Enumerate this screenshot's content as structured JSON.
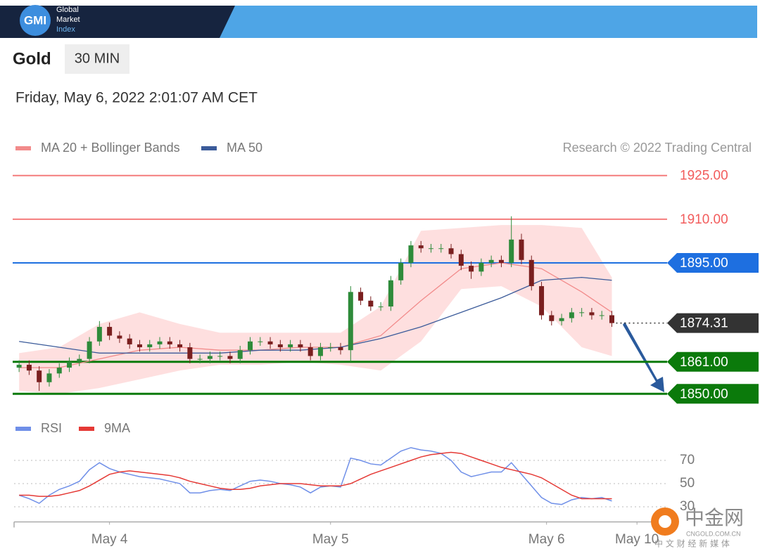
{
  "header": {
    "logo": "GMI",
    "brand": [
      "Global",
      "Market",
      "Index"
    ]
  },
  "symbol": "Gold",
  "timeframe": "30 MIN",
  "timestamp": "Friday, May 6, 2022 2:01:07 AM CET",
  "watermark": {
    "title": "中金网",
    "domain": "CNGOLD.COM.CN",
    "tagline": "中 文 财 经 新 媒 体"
  },
  "chart_data": [
    {
      "type": "candlestick",
      "source": "Research © 2022 Trading Central",
      "xlim": [
        -0.5,
        64.5
      ],
      "ylim": [
        1845,
        1930
      ],
      "up_color": "#2e8b3a",
      "down_color": "#7a1f1f",
      "open": [
        1859,
        1860,
        1858,
        1854,
        1857,
        1859,
        1861,
        1862,
        1868,
        1873,
        1870,
        1869,
        1867,
        1866,
        1867,
        1868,
        1867,
        1866,
        1862,
        1862,
        1863,
        1863,
        1862,
        1865,
        1868,
        1868,
        1867,
        1866,
        1867,
        1866,
        1863,
        1866,
        1866,
        1865,
        1885,
        1882,
        1880,
        1880,
        1889,
        1895,
        1901,
        1900,
        1900,
        1900,
        1898,
        1894,
        1892,
        1895,
        1896,
        1895,
        1903,
        1896,
        1887,
        1877,
        1875,
        1876,
        1878,
        1878,
        1877,
        1877
      ],
      "high": [
        1861.5,
        1861.5,
        1859.5,
        1858.5,
        1860.5,
        1862.5,
        1863.5,
        1869.5,
        1875,
        1874.5,
        1871.5,
        1870.5,
        1868.5,
        1868.5,
        1869.5,
        1869.5,
        1868.5,
        1867.5,
        1863.5,
        1864.5,
        1864.5,
        1864.5,
        1866.5,
        1869.5,
        1869.5,
        1869.5,
        1868.5,
        1868.5,
        1868.5,
        1867.5,
        1867.5,
        1867.5,
        1867.5,
        1887,
        1886.5,
        1883.5,
        1881.5,
        1890.5,
        1896.5,
        1902.5,
        1902.5,
        1901.5,
        1901.5,
        1901.5,
        1899.5,
        1895.5,
        1896.5,
        1897.5,
        1897.5,
        1911,
        1905,
        1897.5,
        1888.5,
        1878.5,
        1877.5,
        1879.5,
        1879.5,
        1879.5,
        1878.5,
        1878.5
      ],
      "low": [
        1857.5,
        1856.5,
        1851,
        1852.5,
        1855.5,
        1857.5,
        1859.5,
        1860.5,
        1866.5,
        1868.5,
        1867.5,
        1865.5,
        1864.5,
        1864.5,
        1865.5,
        1865.5,
        1864.5,
        1860.5,
        1860.5,
        1860.5,
        1861.5,
        1860.5,
        1860.5,
        1863.5,
        1866.5,
        1865.5,
        1864.5,
        1864.5,
        1864.5,
        1861.5,
        1861.5,
        1864.5,
        1863.5,
        1861,
        1880.5,
        1878.5,
        1878.5,
        1878.5,
        1887.5,
        1893.5,
        1898.5,
        1898.5,
        1898.5,
        1896.5,
        1892.5,
        1889.5,
        1890.5,
        1893.5,
        1893.5,
        1893.5,
        1894.5,
        1885.5,
        1875.5,
        1873.5,
        1873.5,
        1874.5,
        1876.5,
        1875.5,
        1875.5,
        1873
      ],
      "close": [
        1860,
        1858,
        1854,
        1857,
        1859,
        1861,
        1862,
        1868,
        1873,
        1870,
        1869,
        1867,
        1866,
        1867,
        1868,
        1867,
        1866,
        1862,
        1862,
        1863,
        1863,
        1862,
        1865,
        1868,
        1868,
        1867,
        1866,
        1867,
        1866,
        1863,
        1866,
        1866,
        1865,
        1885,
        1882,
        1880,
        1880,
        1889,
        1895,
        1901,
        1900,
        1900,
        1900,
        1898,
        1894,
        1892,
        1895,
        1896,
        1895,
        1903,
        1896,
        1887,
        1877,
        1875,
        1876,
        1878,
        1878,
        1877,
        1877,
        1874.31
      ],
      "series": [
        {
          "name": "MA 20 + Bollinger Bands",
          "color": "#f28b8b",
          "x": [
            0,
            4,
            8,
            12,
            16,
            20,
            24,
            28,
            32,
            36,
            40,
            44,
            48,
            52,
            56,
            59
          ],
          "values": [
            1859,
            1859,
            1862,
            1865,
            1866,
            1865,
            1865,
            1866,
            1866,
            1870,
            1882,
            1893,
            1895,
            1893,
            1885,
            1878
          ],
          "upper": [
            1864,
            1866,
            1874,
            1878,
            1874,
            1871,
            1871,
            1871,
            1871,
            1880,
            1906,
            1907,
            1908,
            1908,
            1907,
            1890
          ],
          "lower": [
            1851,
            1850,
            1852,
            1855,
            1858,
            1860,
            1860,
            1861,
            1860,
            1858,
            1868,
            1886,
            1887,
            1880,
            1866,
            1863
          ]
        },
        {
          "name": "MA 50",
          "color": "#3b5b9a",
          "x": [
            0,
            4,
            8,
            12,
            16,
            20,
            24,
            28,
            32,
            36,
            40,
            44,
            48,
            52,
            56,
            59
          ],
          "values": [
            1868,
            1866,
            1864,
            1864,
            1864,
            1864,
            1865,
            1865,
            1866,
            1869,
            1873,
            1878,
            1883,
            1889,
            1890,
            1889
          ]
        }
      ],
      "levels": [
        {
          "value": 1925,
          "label": "1925.00",
          "color": "#f25c5c",
          "style": "solid",
          "tag": false
        },
        {
          "value": 1910,
          "label": "1910.00",
          "color": "#f25c5c",
          "style": "solid",
          "tag": false
        },
        {
          "value": 1895,
          "label": "1895.00",
          "color": "#1e6fe0",
          "style": "solid",
          "tag": true
        },
        {
          "value": 1874.31,
          "label": "1874.31",
          "color": "#333333",
          "style": "dotted",
          "tag": true
        },
        {
          "value": 1861,
          "label": "1861.00",
          "color": "#0b7a0b",
          "style": "solid",
          "tag": true
        },
        {
          "value": 1850,
          "label": "1850.00",
          "color": "#0b7a0b",
          "style": "solid",
          "tag": true
        }
      ]
    },
    {
      "type": "line",
      "xlim": [
        -0.5,
        64.5
      ],
      "ylim": [
        17,
        84
      ],
      "yticks": [
        30,
        50,
        70
      ],
      "grid": true,
      "xticks": [
        {
          "value": 9,
          "label": "May 4"
        },
        {
          "value": 31,
          "label": "May 5"
        },
        {
          "value": 52.5,
          "label": "May 6"
        },
        {
          "value": 61.5,
          "label": "May 10"
        }
      ],
      "series": [
        {
          "name": "RSI",
          "color": "#6f8fe8",
          "values": [
            40,
            37,
            33,
            40,
            45,
            48,
            52,
            62,
            68,
            63,
            60,
            58,
            56,
            55,
            54,
            52,
            50,
            42,
            42,
            44,
            45,
            44,
            48,
            52,
            53,
            52,
            50,
            49,
            47,
            42,
            47,
            48,
            47,
            72,
            70,
            67,
            66,
            72,
            78,
            81,
            79,
            78,
            76,
            70,
            60,
            56,
            58,
            60,
            60,
            68,
            58,
            48,
            38,
            33,
            32,
            36,
            38,
            37,
            38,
            35
          ]
        },
        {
          "name": "9MA",
          "color": "#e53935",
          "values": [
            40,
            40,
            39,
            39,
            40,
            42,
            44,
            48,
            53,
            58,
            60,
            61,
            60,
            59,
            58,
            57,
            55,
            52,
            50,
            48,
            46,
            45,
            45,
            46,
            48,
            49,
            50,
            50,
            50,
            49,
            48,
            48,
            48,
            50,
            54,
            58,
            61,
            64,
            67,
            70,
            73,
            75,
            76,
            77,
            76,
            73,
            70,
            67,
            64,
            62,
            60,
            58,
            55,
            50,
            45,
            40,
            37,
            37,
            37,
            37
          ]
        }
      ]
    }
  ]
}
